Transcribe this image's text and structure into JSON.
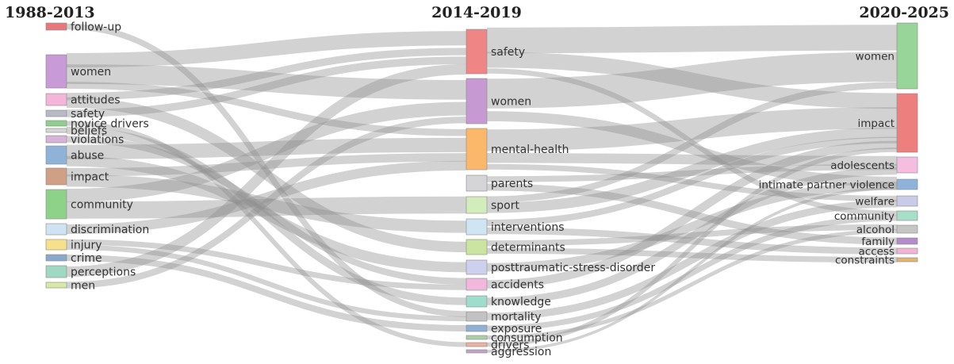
{
  "periods": [
    "1988-2013",
    "2014-2019",
    "2020-2025"
  ],
  "columns": [
    [
      {
        "id": "l-follow-up",
        "label": "follow-up",
        "color": "#e8777a"
      },
      {
        "id": "l-women",
        "label": "women",
        "color": "#c89ad6"
      },
      {
        "id": "l-attitudes",
        "label": "attitudes",
        "color": "#f3b6d9"
      },
      {
        "id": "l-safety",
        "label": "safety",
        "color": "#b7b9c4"
      },
      {
        "id": "l-novice-drivers",
        "label": "novice drivers",
        "color": "#8fce8f"
      },
      {
        "id": "l-beliefs",
        "label": "beliefs",
        "color": "#d7d7d7"
      },
      {
        "id": "l-violations",
        "label": "violations",
        "color": "#d7b4d7"
      },
      {
        "id": "l-abuse",
        "label": "abuse",
        "color": "#8fb2d8"
      },
      {
        "id": "l-impact",
        "label": "impact",
        "color": "#cf9f86"
      },
      {
        "id": "l-community",
        "label": "community",
        "color": "#8ed28a"
      },
      {
        "id": "l-discrimination",
        "label": "discrimination",
        "color": "#cfe3f3"
      },
      {
        "id": "l-injury",
        "label": "injury",
        "color": "#f6e08c"
      },
      {
        "id": "l-crime",
        "label": "crime",
        "color": "#8aa8c9"
      },
      {
        "id": "l-perceptions",
        "label": "perceptions",
        "color": "#9fd9c3"
      },
      {
        "id": "l-men",
        "label": "men",
        "color": "#d7e8a8"
      }
    ],
    [
      {
        "id": "m-safety",
        "label": "safety",
        "color": "#ef8585"
      },
      {
        "id": "m-women",
        "label": "women",
        "color": "#c799d3"
      },
      {
        "id": "m-mental-health",
        "label": "mental-health",
        "color": "#fbb86a"
      },
      {
        "id": "m-parents",
        "label": "parents",
        "color": "#d5d5d8"
      },
      {
        "id": "m-sport",
        "label": "sport",
        "color": "#d3ecbb"
      },
      {
        "id": "m-interventions",
        "label": "interventions",
        "color": "#cfe5f3"
      },
      {
        "id": "m-determinants",
        "label": "determinants",
        "color": "#cbe5a0"
      },
      {
        "id": "m-ptsd",
        "label": "posttraumatic-stress-disorder",
        "color": "#cfcfee"
      },
      {
        "id": "m-accidents",
        "label": "accidents",
        "color": "#f2b7dd"
      },
      {
        "id": "m-knowledge",
        "label": "knowledge",
        "color": "#9edccb"
      },
      {
        "id": "m-mortality",
        "label": "mortality",
        "color": "#c2c2c2"
      },
      {
        "id": "m-exposure",
        "label": "exposure",
        "color": "#8fb0d3"
      },
      {
        "id": "m-consumption",
        "label": "consumption",
        "color": "#a9cfa5"
      },
      {
        "id": "m-drivers",
        "label": "drivers",
        "color": "#eab0a6"
      },
      {
        "id": "m-aggression",
        "label": "aggression",
        "color": "#c5a2c9"
      }
    ],
    [
      {
        "id": "r-women",
        "label": "women",
        "color": "#98d598"
      },
      {
        "id": "r-impact",
        "label": "impact",
        "color": "#ee7f7f"
      },
      {
        "id": "r-adolescents",
        "label": "adolescents",
        "color": "#f5bee1"
      },
      {
        "id": "r-ipv",
        "label": "intimate partner violence",
        "color": "#8eb2d8"
      },
      {
        "id": "r-welfare",
        "label": "welfare",
        "color": "#c9cbe9"
      },
      {
        "id": "r-community",
        "label": "community",
        "color": "#a6dec7"
      },
      {
        "id": "r-alcohol",
        "label": "alcohol",
        "color": "#c6c6c6"
      },
      {
        "id": "r-family",
        "label": "family",
        "color": "#b28ccb"
      },
      {
        "id": "r-access",
        "label": "access",
        "color": "#f2b3d7"
      },
      {
        "id": "r-constraints",
        "label": "constraints",
        "color": "#e6b36e"
      }
    ]
  ],
  "flows": [
    [
      "l-follow-up",
      "m-mortality",
      1
    ],
    [
      "l-women",
      "m-safety",
      2
    ],
    [
      "l-women",
      "m-women",
      3
    ],
    [
      "l-women",
      "m-mental-health",
      1
    ],
    [
      "l-attitudes",
      "m-safety",
      1
    ],
    [
      "l-attitudes",
      "m-determinants",
      1
    ],
    [
      "l-safety",
      "m-safety",
      1
    ],
    [
      "l-novice-drivers",
      "m-drivers",
      1
    ],
    [
      "l-beliefs",
      "m-knowledge",
      1
    ],
    [
      "l-violations",
      "m-accidents",
      1
    ],
    [
      "l-abuse",
      "m-mental-health",
      2
    ],
    [
      "l-abuse",
      "m-ptsd",
      1
    ],
    [
      "l-impact",
      "m-interventions",
      1
    ],
    [
      "l-impact",
      "m-mental-health",
      1
    ],
    [
      "l-community",
      "m-sport",
      3
    ],
    [
      "l-community",
      "m-women",
      2
    ],
    [
      "l-discrimination",
      "m-mental-health",
      1
    ],
    [
      "l-injury",
      "m-mortality",
      1
    ],
    [
      "l-injury",
      "m-accidents",
      1
    ],
    [
      "l-crime",
      "m-exposure",
      1
    ],
    [
      "l-perceptions",
      "m-safety",
      1
    ],
    [
      "l-men",
      "m-women",
      1
    ],
    [
      "m-safety",
      "r-women",
      4
    ],
    [
      "m-safety",
      "r-impact",
      3
    ],
    [
      "m-safety",
      "r-community",
      1
    ],
    [
      "m-women",
      "r-women",
      4
    ],
    [
      "m-women",
      "r-ipv",
      2
    ],
    [
      "m-mental-health",
      "r-impact",
      4
    ],
    [
      "m-mental-health",
      "r-adolescents",
      2
    ],
    [
      "m-mental-health",
      "r-welfare",
      1
    ],
    [
      "m-parents",
      "r-family",
      1
    ],
    [
      "m-parents",
      "r-adolescents",
      1
    ],
    [
      "m-sport",
      "r-impact",
      2
    ],
    [
      "m-sport",
      "r-women",
      1
    ],
    [
      "m-interventions",
      "r-access",
      1
    ],
    [
      "m-interventions",
      "r-impact",
      1
    ],
    [
      "m-determinants",
      "r-alcohol",
      1
    ],
    [
      "m-determinants",
      "r-constraints",
      1
    ],
    [
      "m-ptsd",
      "r-ipv",
      1
    ],
    [
      "m-accidents",
      "r-impact",
      1
    ],
    [
      "m-knowledge",
      "r-adolescents",
      1
    ],
    [
      "m-mortality",
      "r-welfare",
      1
    ],
    [
      "m-exposure",
      "r-community",
      1
    ],
    [
      "m-consumption",
      "r-alcohol",
      1
    ],
    [
      "m-drivers",
      "r-impact",
      1
    ],
    [
      "m-aggression",
      "r-ipv",
      1
    ]
  ]
}
